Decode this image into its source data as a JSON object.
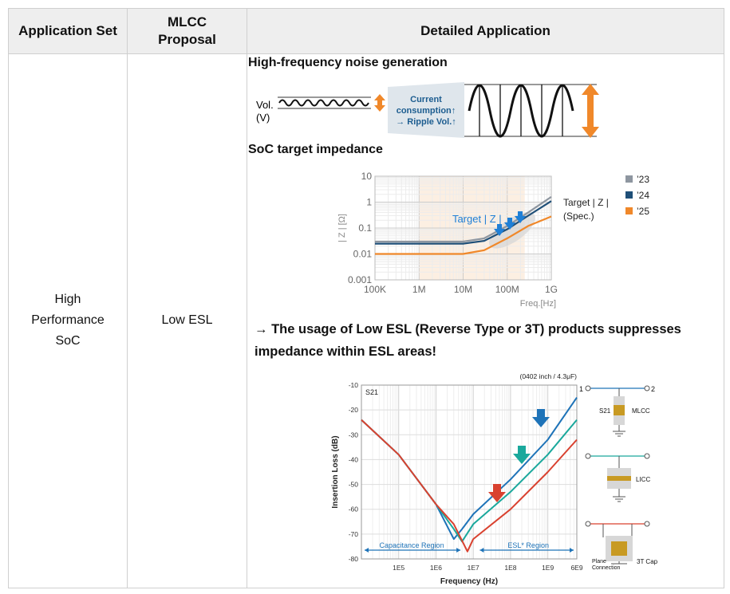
{
  "table": {
    "headers": {
      "col1": "Application Set",
      "col2_line1": "MLCC",
      "col2_line2": "Proposal",
      "col3": "Detailed Application"
    },
    "row": {
      "application_line1": "High",
      "application_line2": "Performance",
      "application_line3": "SoC",
      "proposal": "Low ESL"
    }
  },
  "noise": {
    "title": "High-frequency noise generation",
    "vol_label_line1": "Vol.",
    "vol_label_line2": "(V)",
    "arrow_line1": "Current",
    "arrow_line2": "consumption↑",
    "arrow_line3": "→ Ripple Vol.↑",
    "accent_color": "#f0882a",
    "arrow_text_color": "#1d5d90"
  },
  "impedance": {
    "title": "SoC target impedance",
    "chart_data": {
      "type": "line",
      "ylabel": "| Z | [Ω]",
      "xlabel": "Freq.[Hz]",
      "x_ticks": [
        "100K",
        "1M",
        "10M",
        "100M",
        "1G"
      ],
      "y_ticks": [
        "10",
        "1",
        "0.1",
        "0.01",
        "0.001"
      ],
      "log_x": true,
      "log_y": true,
      "xlim": [
        100000,
        1000000000
      ],
      "ylim": [
        0.001,
        10
      ],
      "grid": true,
      "highlight_region_hz": [
        1000000,
        250000000
      ],
      "annotation": "Target | Z |",
      "series_label_line1": "Target | Z |",
      "series_label_line2": "(Spec.)",
      "legend_position": "right",
      "series": [
        {
          "name": "’23",
          "color": "#8e96a0",
          "x": [
            100000,
            1000000,
            10000000,
            30000000,
            100000000,
            300000000,
            1000000000
          ],
          "values": [
            0.03,
            0.03,
            0.03,
            0.04,
            0.12,
            0.4,
            1.6
          ]
        },
        {
          "name": "’24",
          "color": "#1f4f78",
          "x": [
            100000,
            1000000,
            10000000,
            30000000,
            100000000,
            300000000,
            1000000000
          ],
          "values": [
            0.025,
            0.025,
            0.025,
            0.032,
            0.09,
            0.3,
            1.1
          ]
        },
        {
          "name": "’25",
          "color": "#f0882a",
          "x": [
            100000,
            1000000,
            10000000,
            30000000,
            100000000,
            300000000,
            1000000000
          ],
          "values": [
            0.01,
            0.01,
            0.01,
            0.014,
            0.04,
            0.12,
            0.28
          ]
        }
      ]
    }
  },
  "esl_note": {
    "line1": "→ The usage of Low ESL (Reverse Type or 3T) products suppresses",
    "line2": "impedance within ESL areas!"
  },
  "insertion": {
    "chart_data": {
      "type": "line",
      "title": "(0402 inch / 4.3μF)",
      "inner_label": "S21",
      "xlabel": "Frequency  (Hz)",
      "ylabel": "Insertion Loss (dB)",
      "x_ticks": [
        "1E5",
        "1E6",
        "1E7",
        "1E8",
        "1E9",
        "6E9"
      ],
      "y_ticks": [
        "-10",
        "-20",
        "-30",
        "-40",
        "-50",
        "-60",
        "-70",
        "-80"
      ],
      "log_x": true,
      "xlim": [
        10000,
        6000000000
      ],
      "ylim": [
        -80,
        -10
      ],
      "grid": true,
      "region_left": "Capacitance Region",
      "region_right": "ESL* Region",
      "series": [
        {
          "name": "MLCC",
          "color": "#1e73b8",
          "x": [
            10000,
            100000,
            1000000,
            3000000,
            5000000,
            10000000,
            100000000,
            1000000000,
            6000000000
          ],
          "values": [
            -24,
            -38,
            -58,
            -72,
            -68,
            -62,
            -48,
            -32,
            -15
          ]
        },
        {
          "name": "LICC",
          "color": "#1aa89c",
          "x": [
            10000,
            100000,
            1000000,
            3000000,
            5000000,
            10000000,
            100000000,
            1000000000,
            6000000000
          ],
          "values": [
            -24,
            -38,
            -58,
            -68,
            -73,
            -66,
            -53,
            -38,
            -24
          ]
        },
        {
          "name": "3T Cap",
          "color": "#d9412f",
          "x": [
            10000,
            100000,
            1000000,
            3000000,
            7000000,
            10000000,
            100000000,
            1000000000,
            6000000000
          ],
          "values": [
            -24,
            -38,
            -58,
            -66,
            -77,
            -72,
            -60,
            -45,
            -32
          ]
        }
      ]
    },
    "schematic": {
      "port1": "1",
      "port2": "2",
      "s21": "S21",
      "mlcc": "MLCC",
      "licc": "LICC",
      "cap3t": "3T Cap",
      "plane_line1": "Plane",
      "plane_line2": "Connection"
    }
  }
}
